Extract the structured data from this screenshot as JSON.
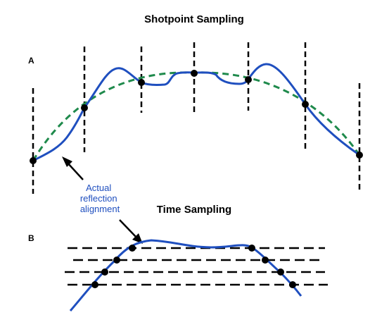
{
  "panel_a": {
    "title": "Shotpoint Sampling",
    "label": "A"
  },
  "panel_b": {
    "title": "Time Sampling",
    "label": "B"
  },
  "annotation": {
    "lines": [
      "Actual",
      "reflection",
      "alignment"
    ],
    "color": "#1f4fbf"
  },
  "colors": {
    "reflection": "#1f4fbf",
    "fit_curve": "#1f8a4c",
    "sample_lines": "#000000",
    "sample_points": "#000000"
  },
  "icons": [
    "arrow-icon"
  ]
}
